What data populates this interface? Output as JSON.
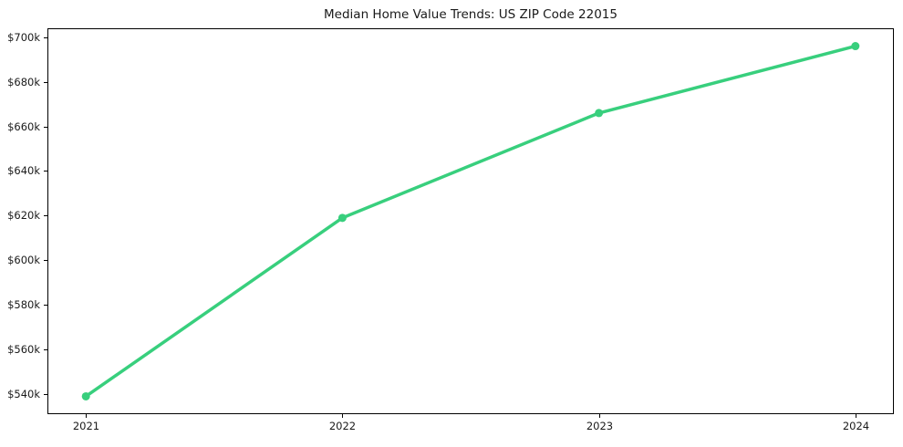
{
  "chart_data": {
    "type": "line",
    "title": "Median Home Value Trends: US ZIP Code 22015",
    "x": [
      2021,
      2022,
      2023,
      2024
    ],
    "x_tick_labels": [
      "2021",
      "2022",
      "2023",
      "2024"
    ],
    "values": [
      539,
      619,
      666,
      696
    ],
    "y_ticks": [
      {
        "value": 540,
        "label": "$540k"
      },
      {
        "value": 560,
        "label": "$560k"
      },
      {
        "value": 580,
        "label": "$580k"
      },
      {
        "value": 600,
        "label": "$600k"
      },
      {
        "value": 620,
        "label": "$620k"
      },
      {
        "value": 640,
        "label": "$640k"
      },
      {
        "value": 660,
        "label": "$660k"
      },
      {
        "value": 680,
        "label": "$680k"
      },
      {
        "value": 700,
        "label": "$700k"
      }
    ],
    "xlim": [
      2020.85,
      2024.15
    ],
    "ylim": [
      531,
      704
    ],
    "xlabel": "",
    "ylabel": "",
    "grid": false,
    "legend": "none",
    "line_color": "#38cf7d",
    "marker": "circle",
    "frame_color": "#000000",
    "text_color": "#1a1a1a",
    "background_color": "#ffffff"
  }
}
